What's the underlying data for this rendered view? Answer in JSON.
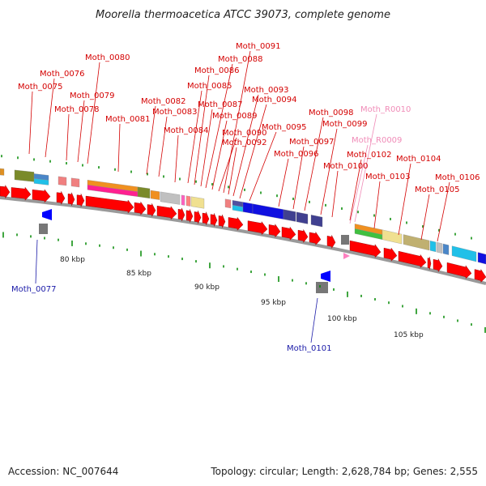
{
  "title": "Moorella thermoacetica ATCC 39073, complete genome",
  "footer": {
    "accession": "Accession: NC_007644",
    "summary": "Topology: circular; Length: 2,628,784 bp; Genes: 2,555"
  },
  "colors": {
    "forward_gene": "#ff0000",
    "reverse_gene": "#0000ff",
    "label_forward": "#d40000",
    "label_rna": "#f08cb8",
    "label_reverse": "#1a1aa8",
    "backbone": "#9a9a9a",
    "tick": "#008800"
  },
  "ruler": {
    "unit": "kbp",
    "ticks": [
      "80 kbp",
      "85 kbp",
      "90 kbp",
      "95 kbp",
      "100 kbp",
      "105 kbp"
    ]
  },
  "forward_labels": [
    "Moth_0075",
    "Moth_0076",
    "Moth_0078",
    "Moth_0079",
    "Moth_0080",
    "Moth_0081",
    "Moth_0082",
    "Moth_0083",
    "Moth_0084",
    "Moth_0085",
    "Moth_0086",
    "Moth_0087",
    "Moth_0088",
    "Moth_0089",
    "Moth_0090",
    "Moth_0091",
    "Moth_0092",
    "Moth_0093",
    "Moth_0094",
    "Moth_0095",
    "Moth_0096",
    "Moth_0097",
    "Moth_0098",
    "Moth_0099",
    "Moth_0100",
    "Moth_0102",
    "Moth_0103",
    "Moth_0104",
    "Moth_0105",
    "Moth_0106"
  ],
  "rna_labels": [
    "Moth_R0010",
    "Moth_R0009"
  ],
  "reverse_labels": [
    "Moth_0077",
    "Moth_0101"
  ]
}
